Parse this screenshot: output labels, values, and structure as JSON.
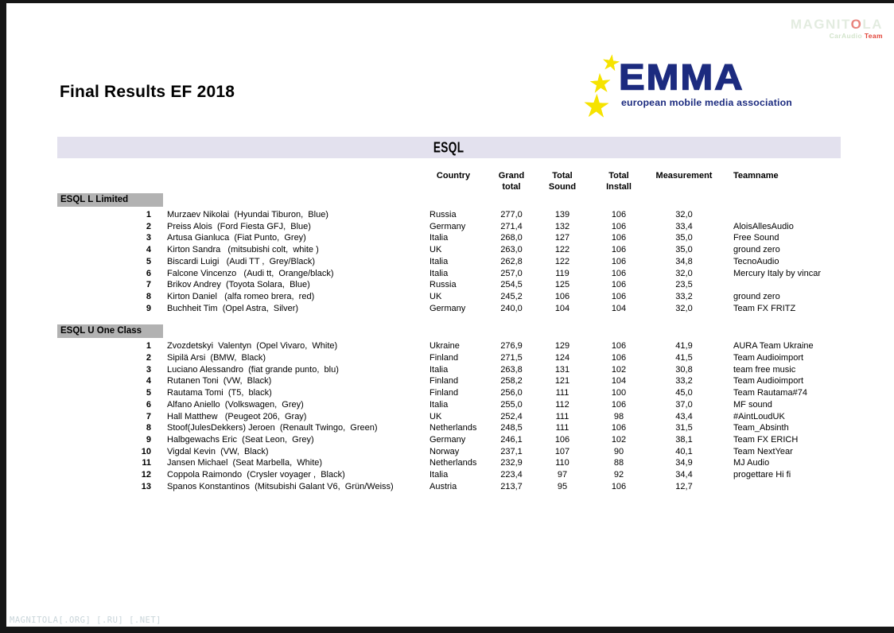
{
  "header": {
    "title": "Final Results EF 2018"
  },
  "watermark": {
    "word_prefix": "MAGNIT",
    "word_o": "O",
    "word_suffix": "LA",
    "subtitle_left": "CarAudio",
    "subtitle_right": "Team"
  },
  "logo": {
    "name": "EMMA",
    "tagline": "european mobile media association",
    "navy": "#1c2b7f",
    "star_yellow": "#f6e300"
  },
  "band": {
    "title": "ESQL",
    "background": "#e3e1ee"
  },
  "columns": [
    {
      "l1": "Country",
      "l2": ""
    },
    {
      "l1": "Grand",
      "l2": "total"
    },
    {
      "l1": "Total",
      "l2": "Sound"
    },
    {
      "l1": "Total",
      "l2": "Install"
    },
    {
      "l1": "Measurement",
      "l2": ""
    },
    {
      "l1": "Teamname",
      "l2": ""
    }
  ],
  "sections": [
    {
      "name": "ESQL L Limited",
      "rows": [
        {
          "rank": "1",
          "competitor": "Murzaev Nikolai  (Hyundai Tiburon,  Blue)",
          "country": "Russia",
          "grand_total": "277,0",
          "total_sound": "139",
          "total_install": "106",
          "measurement": "32,0",
          "teamname": ""
        },
        {
          "rank": "2",
          "competitor": "Preiss Alois  (Ford Fiesta GFJ,  Blue)",
          "country": "Germany",
          "grand_total": "271,4",
          "total_sound": "132",
          "total_install": "106",
          "measurement": "33,4",
          "teamname": "AloisAllesAudio"
        },
        {
          "rank": "3",
          "competitor": "Artusa Gianluca  (Fiat Punto,  Grey)",
          "country": "Italia",
          "grand_total": "268,0",
          "total_sound": "127",
          "total_install": "106",
          "measurement": "35,0",
          "teamname": "Free Sound"
        },
        {
          "rank": "4",
          "competitor": "Kirton Sandra   (mitsubishi colt,  white )",
          "country": "UK",
          "grand_total": "263,0",
          "total_sound": "122",
          "total_install": "106",
          "measurement": "35,0",
          "teamname": "ground zero"
        },
        {
          "rank": "5",
          "competitor": "Biscardi Luigi   (Audi TT ,  Grey/Black)",
          "country": "Italia",
          "grand_total": "262,8",
          "total_sound": "122",
          "total_install": "106",
          "measurement": "34,8",
          "teamname": "TecnoAudio"
        },
        {
          "rank": "6",
          "competitor": "Falcone Vincenzo   (Audi tt,  Orange/black)",
          "country": "Italia",
          "grand_total": "257,0",
          "total_sound": "119",
          "total_install": "106",
          "measurement": "32,0",
          "teamname": "Mercury Italy by vincar"
        },
        {
          "rank": "7",
          "competitor": "Brikov Andrey  (Toyota Solara,  Blue)",
          "country": "Russia",
          "grand_total": "254,5",
          "total_sound": "125",
          "total_install": "106",
          "measurement": "23,5",
          "teamname": ""
        },
        {
          "rank": "8",
          "competitor": "Kirton Daniel   (alfa romeo brera,  red)",
          "country": "UK",
          "grand_total": "245,2",
          "total_sound": "106",
          "total_install": "106",
          "measurement": "33,2",
          "teamname": "ground zero"
        },
        {
          "rank": "9",
          "competitor": "Buchheit Tim  (Opel Astra,  Silver)",
          "country": "Germany",
          "grand_total": "240,0",
          "total_sound": "104",
          "total_install": "104",
          "measurement": "32,0",
          "teamname": "Team FX FRITZ"
        }
      ]
    },
    {
      "name": "ESQL U One Class",
      "rows": [
        {
          "rank": "1",
          "competitor": "Zvozdetskyi  Valentyn  (Opel Vivaro,  White)",
          "country": "Ukraine",
          "grand_total": "276,9",
          "total_sound": "129",
          "total_install": "106",
          "measurement": "41,9",
          "teamname": "AURA Team Ukraine"
        },
        {
          "rank": "2",
          "competitor": "Sipilä Arsi  (BMW,  Black)",
          "country": "Finland",
          "grand_total": "271,5",
          "total_sound": "124",
          "total_install": "106",
          "measurement": "41,5",
          "teamname": "Team Audioimport"
        },
        {
          "rank": "3",
          "competitor": "Luciano Alessandro  (fiat grande punto,  blu)",
          "country": "Italia",
          "grand_total": "263,8",
          "total_sound": "131",
          "total_install": "102",
          "measurement": "30,8",
          "teamname": "team free music"
        },
        {
          "rank": "4",
          "competitor": "Rutanen Toni  (VW,  Black)",
          "country": "Finland",
          "grand_total": "258,2",
          "total_sound": "121",
          "total_install": "104",
          "measurement": "33,2",
          "teamname": "Team Audioimport"
        },
        {
          "rank": "5",
          "competitor": "Rautama Tomi  (T5,  black)",
          "country": "Finland",
          "grand_total": "256,0",
          "total_sound": "111",
          "total_install": "100",
          "measurement": "45,0",
          "teamname": "Team Rautama#74"
        },
        {
          "rank": "6",
          "competitor": "Alfano Aniello  (Volkswagen,  Grey)",
          "country": "Italia",
          "grand_total": "255,0",
          "total_sound": "112",
          "total_install": "106",
          "measurement": "37,0",
          "teamname": "MF sound"
        },
        {
          "rank": "7",
          "competitor": "Hall Matthew   (Peugeot 206,  Gray)",
          "country": "UK",
          "grand_total": "252,4",
          "total_sound": "111",
          "total_install": "98",
          "measurement": "43,4",
          "teamname": "#AintLoudUK"
        },
        {
          "rank": "8",
          "competitor": "Stoof(JulesDekkers) Jeroen  (Renault Twingo,  Green)",
          "country": "Netherlands",
          "grand_total": "248,5",
          "total_sound": "111",
          "total_install": "106",
          "measurement": "31,5",
          "teamname": "Team_Absinth"
        },
        {
          "rank": "9",
          "competitor": "Halbgewachs Eric  (Seat Leon,  Grey)",
          "country": "Germany",
          "grand_total": "246,1",
          "total_sound": "106",
          "total_install": "102",
          "measurement": "38,1",
          "teamname": "Team FX ERICH"
        },
        {
          "rank": "10",
          "competitor": "Vigdal Kevin  (VW,  Black)",
          "country": "Norway",
          "grand_total": "237,1",
          "total_sound": "107",
          "total_install": "90",
          "measurement": "40,1",
          "teamname": "Team NextYear"
        },
        {
          "rank": "11",
          "competitor": "Jansen Michael  (Seat Marbella,  White)",
          "country": "Netherlands",
          "grand_total": "232,9",
          "total_sound": "110",
          "total_install": "88",
          "measurement": "34,9",
          "teamname": "MJ Audio"
        },
        {
          "rank": "12",
          "competitor": "Coppola Raimondo  (Crysler voyager ,  Black)",
          "country": "Italia",
          "grand_total": "223,4",
          "total_sound": "97",
          "total_install": "92",
          "measurement": "34,4",
          "teamname": "progettare Hi fi"
        },
        {
          "rank": "13",
          "competitor": "Spanos Konstantinos  (Mitsubishi Galant V6,  Grün/Weiss)",
          "country": "Austria",
          "grand_total": "213,7",
          "total_sound": "95",
          "total_install": "106",
          "measurement": "12,7",
          "teamname": ""
        }
      ]
    }
  ],
  "footer": {
    "text": "MAGNITOLA[.ORG] [.RU] [.NET]"
  }
}
